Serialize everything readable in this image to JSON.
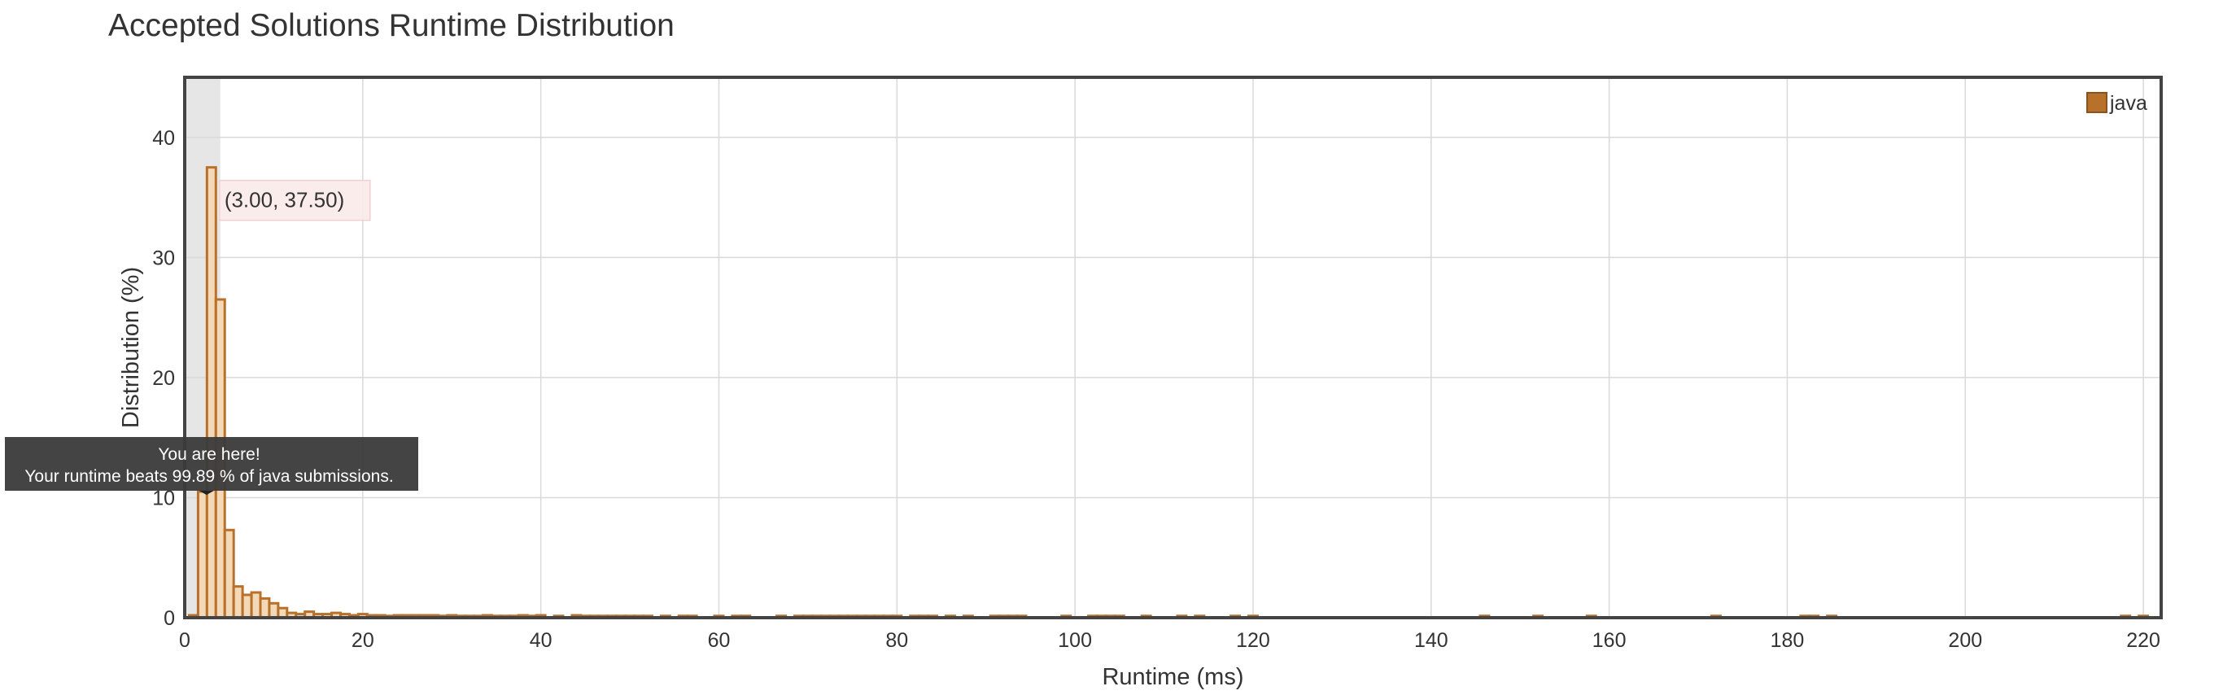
{
  "page": {
    "title": "Accepted Solutions Runtime Distribution"
  },
  "chart_data": {
    "type": "bar",
    "xlabel": "Runtime (ms)",
    "ylabel": "Distribution (%)",
    "xlim": [
      0,
      222
    ],
    "ylim": [
      0,
      45
    ],
    "x_ticks": [
      0,
      20,
      40,
      60,
      80,
      100,
      120,
      140,
      160,
      180,
      200,
      220
    ],
    "y_ticks": [
      0,
      10,
      20,
      30,
      40
    ],
    "grid": true,
    "legend_position": "top-right",
    "bar_width": 1,
    "series": [
      {
        "name": "java",
        "color": "#b8712a",
        "x": [
          1,
          2,
          3,
          4,
          5,
          6,
          7,
          8,
          9,
          10,
          11,
          12,
          13,
          14,
          15,
          16,
          17,
          18,
          19,
          20,
          21,
          22,
          23,
          24,
          25,
          26,
          27,
          28,
          29,
          30,
          31,
          32,
          33,
          34,
          35,
          36,
          37,
          38,
          39,
          40,
          42,
          44,
          45,
          46,
          47,
          48,
          49,
          50,
          51,
          52,
          54,
          56,
          57,
          60,
          62,
          63,
          67,
          69,
          70,
          71,
          72,
          73,
          74,
          75,
          76,
          77,
          78,
          79,
          80,
          82,
          83,
          84,
          86,
          88,
          91,
          92,
          93,
          94,
          99,
          102,
          103,
          104,
          105,
          108,
          112,
          114,
          118,
          120,
          146,
          152,
          158,
          172,
          182,
          183,
          185,
          218,
          220
        ],
        "values": [
          0.2,
          10.5,
          37.5,
          26.5,
          7.3,
          2.6,
          1.9,
          2.1,
          1.6,
          1.2,
          0.8,
          0.4,
          0.3,
          0.5,
          0.3,
          0.3,
          0.4,
          0.3,
          0.2,
          0.3,
          0.2,
          0.2,
          0.15,
          0.2,
          0.2,
          0.2,
          0.2,
          0.2,
          0.15,
          0.2,
          0.15,
          0.15,
          0.15,
          0.2,
          0.15,
          0.15,
          0.15,
          0.2,
          0.15,
          0.2,
          0.15,
          0.2,
          0.15,
          0.15,
          0.15,
          0.15,
          0.15,
          0.15,
          0.15,
          0.15,
          0.15,
          0.15,
          0.15,
          0.15,
          0.15,
          0.15,
          0.15,
          0.15,
          0.15,
          0.15,
          0.15,
          0.15,
          0.15,
          0.15,
          0.15,
          0.15,
          0.15,
          0.15,
          0.15,
          0.15,
          0.15,
          0.15,
          0.15,
          0.15,
          0.15,
          0.15,
          0.15,
          0.15,
          0.15,
          0.15,
          0.15,
          0.15,
          0.15,
          0.15,
          0.15,
          0.15,
          0.15,
          0.15,
          0.15,
          0.15,
          0.15,
          0.15,
          0.15,
          0.15,
          0.15,
          0.15,
          0.15
        ]
      }
    ],
    "highlight_band": {
      "x_from": 0,
      "x_to": 4,
      "color": "#e6e6e6"
    },
    "hover_label": {
      "x": 3,
      "y": 37.5,
      "text": "(3.00, 37.50)"
    },
    "marker_tooltip": {
      "x": 2,
      "y": 10.5,
      "line1": "You are here!",
      "line2": "Your runtime beats 99.89 % of java submissions."
    }
  }
}
